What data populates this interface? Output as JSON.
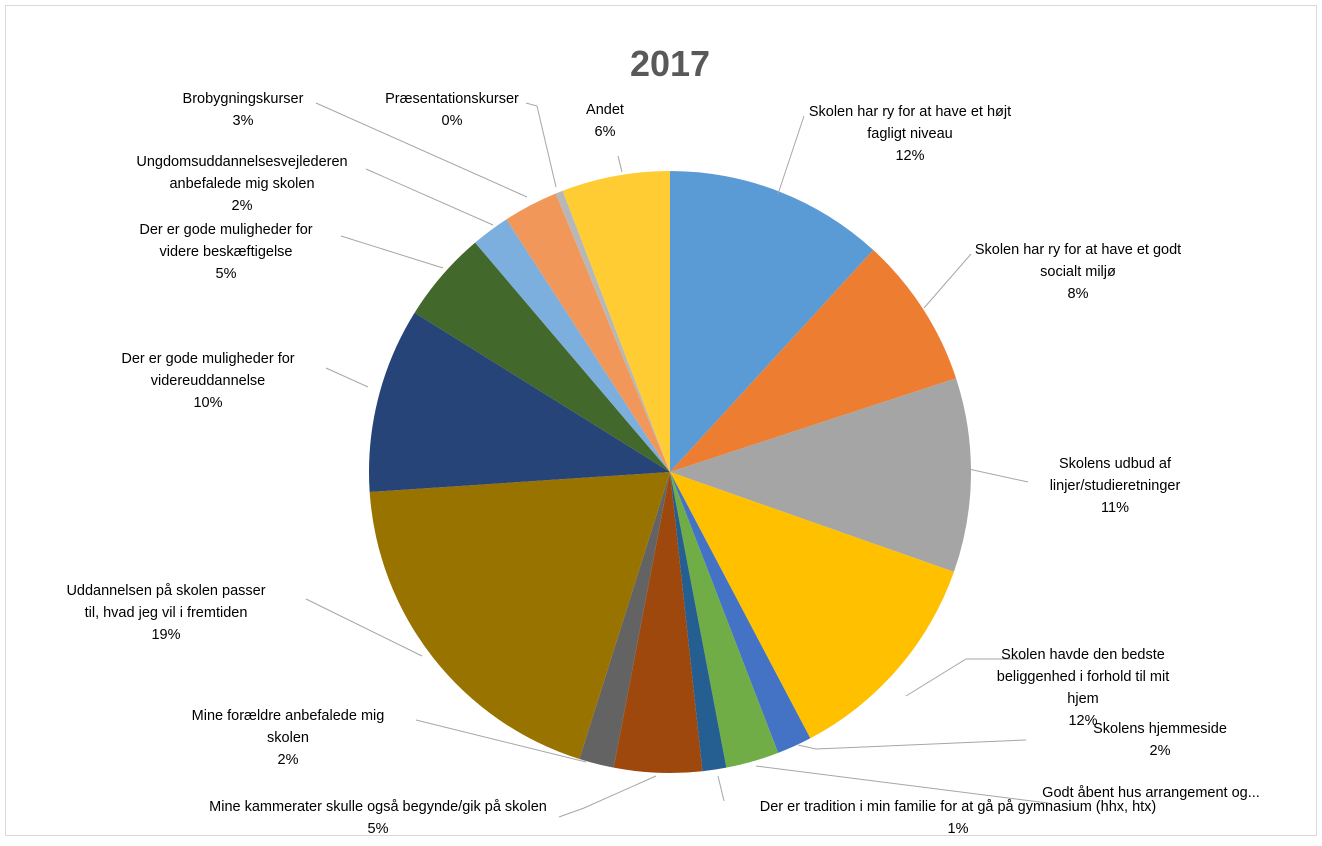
{
  "chart_data": {
    "type": "pie",
    "title": "2017",
    "start_angle_deg": 0,
    "direction": "clockwise",
    "slices": [
      {
        "label_lines": [
          "Skolen har ry for at have et højt",
          "fagligt niveau"
        ],
        "label": "Skolen har ry for at have et højt fagligt niveau",
        "percent_text": "12%",
        "value": 12.0,
        "color": "#5b9bd5"
      },
      {
        "label_lines": [
          "Skolen har ry for at have et godt",
          "socialt miljø"
        ],
        "label": "Skolen har ry for at have et godt socialt miljø",
        "percent_text": "8%",
        "value": 8.3,
        "color": "#ed7d31"
      },
      {
        "label_lines": [
          "Skolens udbud af",
          "linjer/studieretninger"
        ],
        "label": "Skolens udbud af linjer/studieretninger",
        "percent_text": "11%",
        "value": 10.6,
        "color": "#a5a5a5"
      },
      {
        "label_lines": [
          "Skolen havde den bedste",
          "beliggenhed i forhold til mit",
          "hjem"
        ],
        "label": "Skolen havde den bedste beliggenhed i forhold til mit hjem",
        "percent_text": "12%",
        "value": 12.1,
        "color": "#ffc000"
      },
      {
        "label_lines": [
          "Skolens hjemmeside"
        ],
        "label": "Skolens hjemmeside",
        "percent_text": "2%",
        "value": 1.9,
        "color": "#4472c4"
      },
      {
        "label_lines": [
          "Godt åbent hus arrangement og..."
        ],
        "label": "Godt åbent hus arrangement og...",
        "percent_text": "",
        "value": 2.9,
        "color": "#70ad47"
      },
      {
        "label_lines": [
          "Der er tradition i min familie for at gå på gymnasium (hhx, htx)"
        ],
        "label": "Der er tradition i min familie for at gå på gymnasium (hhx, htx)",
        "percent_text": "1%",
        "value": 1.3,
        "color": "#255e91"
      },
      {
        "label_lines": [
          "Mine kammerater skulle også begynde/gik på skolen"
        ],
        "label": "Mine kammerater skulle også begynde/gik på skolen",
        "percent_text": "5%",
        "value": 4.8,
        "color": "#9e480e"
      },
      {
        "label_lines": [
          "Mine forældre anbefalede mig",
          "skolen"
        ],
        "label": "Mine forældre anbefalede mig skolen",
        "percent_text": "2%",
        "value": 1.9,
        "color": "#636363"
      },
      {
        "label_lines": [
          "Uddannelsen på skolen passer",
          "til, hvad jeg vil i fremtiden"
        ],
        "label": "Uddannelsen på skolen passer til, hvad jeg vil i fremtiden",
        "percent_text": "19%",
        "value": 19.4,
        "color": "#997300"
      },
      {
        "label_lines": [
          "Der er gode muligheder for",
          "videreuddannelse"
        ],
        "label": "Der er gode muligheder for videreuddannelse",
        "percent_text": "10%",
        "value": 10.1,
        "color": "#264478"
      },
      {
        "label_lines": [
          "Der er gode muligheder for",
          "videre beskæftigelse"
        ],
        "label": "Der er gode muligheder for videre beskæftigelse",
        "percent_text": "5%",
        "value": 5.0,
        "color": "#43682b"
      },
      {
        "label_lines": [
          "Ungdomsuddannelsesvejlederen",
          "anbefalede mig skolen"
        ],
        "label": "Ungdomsuddannelsesvejlederen anbefalede mig skolen",
        "percent_text": "2%",
        "value": 2.1,
        "color": "#7cafdd"
      },
      {
        "label_lines": [
          "Brobygningskurser"
        ],
        "label": "Brobygningskurser",
        "percent_text": "3%",
        "value": 3.0,
        "color": "#f1975a"
      },
      {
        "label_lines": [
          "Præsentationskurser"
        ],
        "label": "Præsentationskurser",
        "percent_text": "0%",
        "value": 0.4,
        "color": "#b7b7b7"
      },
      {
        "label_lines": [
          "Andet"
        ],
        "label": "Andet",
        "percent_text": "6%",
        "value": 5.9,
        "color": "#ffcd33"
      }
    ]
  }
}
